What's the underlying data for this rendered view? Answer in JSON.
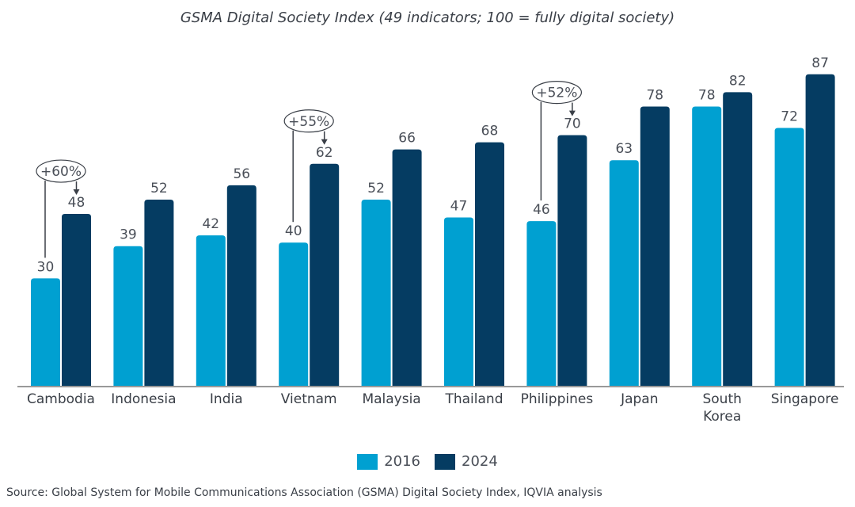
{
  "chart_data": {
    "type": "bar",
    "title": "GSMA Digital Society Index (49 indicators; 100 = fully digital society)",
    "categories": [
      "Cambodia",
      "Indonesia",
      "India",
      "Vietnam",
      "Malaysia",
      "Thailand",
      "Philippines",
      "Japan",
      "South Korea",
      "Singapore"
    ],
    "series": [
      {
        "name": "2016",
        "color": "#00a0d1",
        "values": [
          30,
          39,
          42,
          40,
          52,
          47,
          46,
          63,
          78,
          72
        ]
      },
      {
        "name": "2024",
        "color": "#053c62",
        "values": [
          48,
          52,
          56,
          62,
          66,
          68,
          70,
          78,
          82,
          87
        ]
      }
    ],
    "annotations": [
      {
        "category": "Cambodia",
        "text": "+60%"
      },
      {
        "category": "Vietnam",
        "text": "+55%"
      },
      {
        "category": "Philippines",
        "text": "+52%"
      }
    ],
    "ylim": [
      0,
      100
    ],
    "grid": false,
    "legend_position": "bottom",
    "source": "Source: Global System for Mobile Communications Association (GSMA) Digital Society Index, IQVIA analysis"
  }
}
